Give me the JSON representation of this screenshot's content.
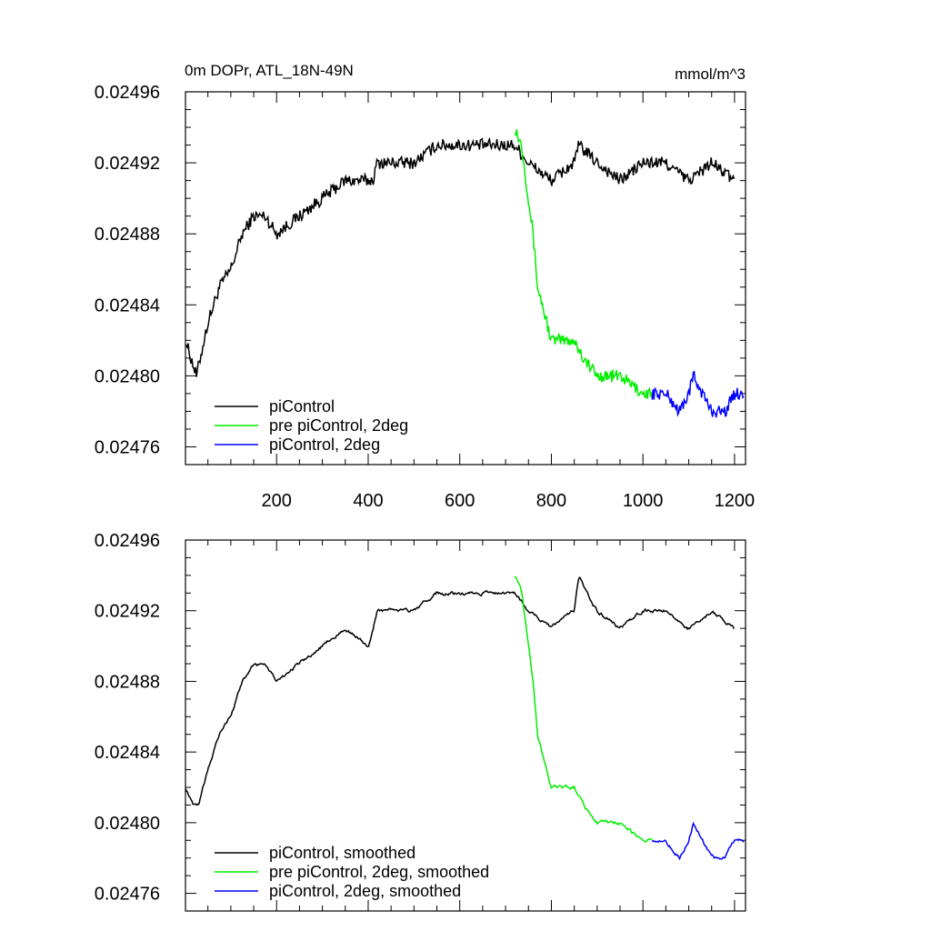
{
  "chart_data": [
    {
      "type": "line",
      "title": "0m DOPr, ATL_18N-49N",
      "units": "mmol/m^3",
      "xlabel": "",
      "ylabel": "",
      "xlim": [
        1,
        1224
      ],
      "ylim": [
        0.02475,
        0.02496
      ],
      "xticks": [
        {
          "value": 200,
          "label": "200"
        },
        {
          "value": 400,
          "label": "400"
        },
        {
          "value": 600,
          "label": "600"
        },
        {
          "value": 800,
          "label": "800"
        },
        {
          "value": 1000,
          "label": "1000"
        },
        {
          "value": 1200,
          "label": "1200"
        }
      ],
      "yticks": [
        {
          "value": 0.02476,
          "label": "0.02476"
        },
        {
          "value": 0.0248,
          "label": "0.02480"
        },
        {
          "value": 0.02484,
          "label": "0.02484"
        },
        {
          "value": 0.02488,
          "label": "0.02488"
        },
        {
          "value": 0.02492,
          "label": "0.02492"
        },
        {
          "value": 0.02496,
          "label": "0.02496"
        }
      ],
      "legend_position": "bottom-left",
      "series": [
        {
          "name": "piControl",
          "color": "#000000",
          "x": [
            1,
            25,
            50,
            75,
            100,
            125,
            150,
            175,
            200,
            250,
            300,
            350,
            400,
            410,
            420,
            450,
            500,
            550,
            600,
            640,
            660,
            700,
            720,
            750,
            800,
            850,
            860,
            900,
            950,
            1000,
            1050,
            1100,
            1150,
            1200
          ],
          "y": [
            0.02482,
            0.0248,
            0.02483,
            0.02485,
            0.02486,
            0.02488,
            0.02489,
            0.02489,
            0.02488,
            0.02489,
            0.0249,
            0.02491,
            0.02491,
            0.02491,
            0.02492,
            0.02492,
            0.02492,
            0.02493,
            0.02493,
            0.02493,
            0.02493,
            0.02493,
            0.02493,
            0.02492,
            0.02491,
            0.02492,
            0.02493,
            0.02492,
            0.02491,
            0.02492,
            0.02492,
            0.02491,
            0.02492,
            0.02491
          ]
        },
        {
          "name": "pre piControl, 2deg",
          "color": "#00ee00",
          "x": [
            720,
            735,
            750,
            760,
            770,
            780,
            790,
            800,
            820,
            850,
            870,
            900,
            950,
            1000,
            1020
          ],
          "y": [
            0.02494,
            0.02493,
            0.0249,
            0.02488,
            0.02485,
            0.02484,
            0.02483,
            0.02482,
            0.02482,
            0.02482,
            0.02481,
            0.0248,
            0.0248,
            0.02479,
            0.02479
          ]
        },
        {
          "name": "piControl, 2deg",
          "color": "#0000ff",
          "x": [
            1020,
            1050,
            1080,
            1100,
            1110,
            1150,
            1180,
            1200,
            1220
          ],
          "y": [
            0.02479,
            0.02479,
            0.02478,
            0.02479,
            0.0248,
            0.02478,
            0.02478,
            0.02479,
            0.02479
          ]
        }
      ],
      "noise_amplitude": 3.5e-06
    },
    {
      "type": "line",
      "title": "",
      "xlabel": "",
      "ylabel": "",
      "xlim": [
        1,
        1224
      ],
      "ylim": [
        0.02475,
        0.02496
      ],
      "xticks": [],
      "yticks": [
        {
          "value": 0.02476,
          "label": "0.02476"
        },
        {
          "value": 0.0248,
          "label": "0.02480"
        },
        {
          "value": 0.02484,
          "label": "0.02484"
        },
        {
          "value": 0.02488,
          "label": "0.02488"
        },
        {
          "value": 0.02492,
          "label": "0.02492"
        },
        {
          "value": 0.02496,
          "label": "0.02496"
        }
      ],
      "legend_position": "bottom-left",
      "series": [
        {
          "name": "piControl, smoothed",
          "color": "#000000",
          "x": [
            1,
            20,
            30,
            50,
            75,
            100,
            125,
            150,
            175,
            200,
            250,
            300,
            350,
            400,
            410,
            420,
            450,
            500,
            550,
            600,
            640,
            660,
            700,
            720,
            750,
            800,
            850,
            860,
            900,
            950,
            1000,
            1050,
            1100,
            1150,
            1200
          ],
          "y": [
            0.02482,
            0.02481,
            0.02481,
            0.02483,
            0.02485,
            0.02486,
            0.02488,
            0.02489,
            0.02489,
            0.02488,
            0.02489,
            0.0249,
            0.02491,
            0.0249,
            0.02491,
            0.02492,
            0.02492,
            0.02492,
            0.02493,
            0.02493,
            0.02493,
            0.02493,
            0.02493,
            0.02493,
            0.02492,
            0.02491,
            0.02492,
            0.02494,
            0.02492,
            0.02491,
            0.02492,
            0.02492,
            0.02491,
            0.02492,
            0.02491
          ]
        },
        {
          "name": "pre piControl, 2deg, smoothed",
          "color": "#00ee00",
          "x": [
            720,
            735,
            750,
            760,
            770,
            780,
            790,
            800,
            820,
            850,
            870,
            900,
            950,
            1000,
            1020
          ],
          "y": [
            0.02494,
            0.02493,
            0.0249,
            0.02488,
            0.02485,
            0.02484,
            0.02483,
            0.02482,
            0.02482,
            0.02482,
            0.02481,
            0.0248,
            0.0248,
            0.02479,
            0.02479
          ]
        },
        {
          "name": "piControl, 2deg, smoothed",
          "color": "#0000ff",
          "x": [
            1020,
            1050,
            1080,
            1100,
            1110,
            1150,
            1180,
            1200,
            1220
          ],
          "y": [
            0.02479,
            0.02479,
            0.02478,
            0.02479,
            0.0248,
            0.02478,
            0.02478,
            0.02479,
            0.02479
          ]
        }
      ],
      "noise_amplitude": 1.2e-06
    }
  ]
}
